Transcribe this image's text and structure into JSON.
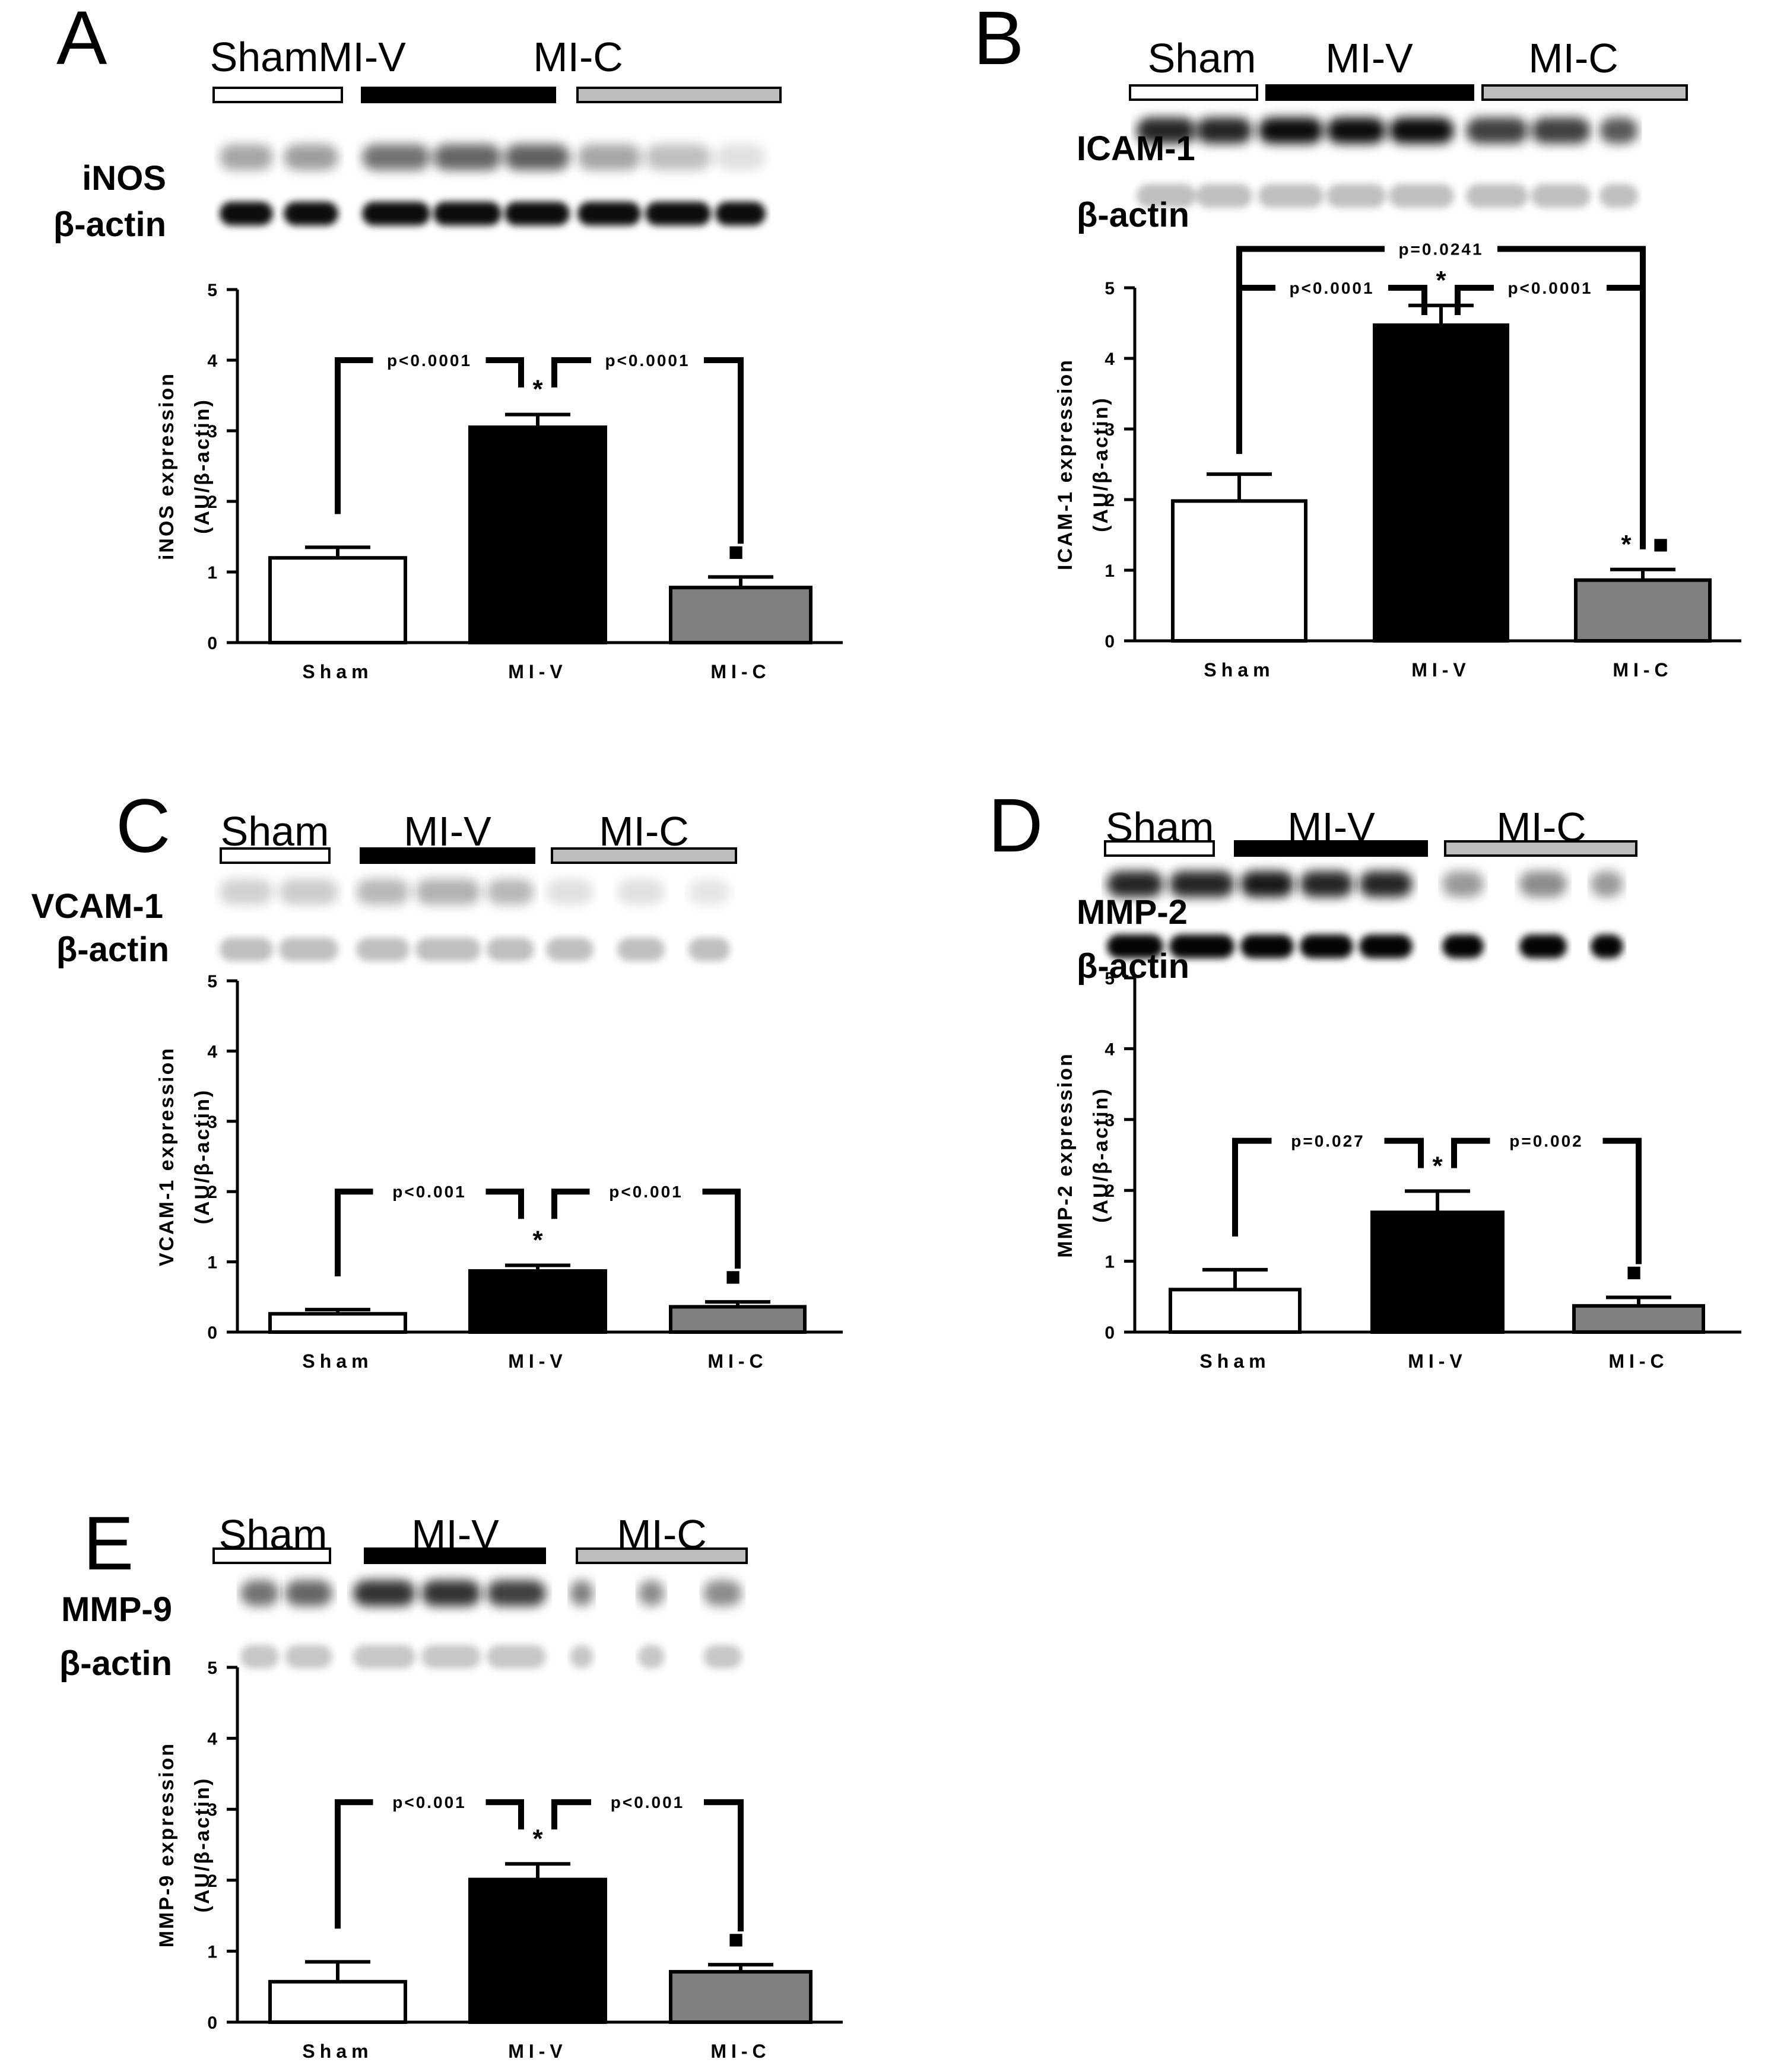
{
  "chart_data": [
    {
      "type": "bar",
      "panel": "A",
      "band_label": "iNOS",
      "loading_label": "β-actin",
      "groups": [
        "Sham",
        "MI-V",
        "MI-C"
      ],
      "group_fills": [
        "#ffffff",
        "#000000",
        "#bdbdbd"
      ],
      "categories": [
        "Sham",
        "MI-V",
        "MI-C"
      ],
      "values": [
        1.2,
        3.05,
        0.78
      ],
      "errors": [
        0.15,
        0.18,
        0.15
      ],
      "bar_colors": [
        "#ffffff",
        "#000000",
        "#808080"
      ],
      "ylabel_lines": [
        "iNOS expression",
        "(AU/β-actin)"
      ],
      "ylim": [
        0,
        5
      ],
      "yticks": [
        "0",
        "1",
        "2",
        "3",
        "4",
        "5"
      ],
      "brackets": [
        {
          "label": "p<0.0001",
          "from": 0,
          "to": 1,
          "level": 4.0
        },
        {
          "label": "p<0.0001",
          "from": 1,
          "to": 2,
          "level": 4.0
        }
      ],
      "markers": [
        {
          "bar": 1,
          "symbol": "*"
        },
        {
          "bar": 2,
          "symbol": "■"
        }
      ]
    },
    {
      "type": "bar",
      "panel": "B",
      "band_label": "ICAM-1",
      "loading_label": "β-actin",
      "groups": [
        "Sham",
        "MI-V",
        "MI-C"
      ],
      "group_fills": [
        "#ffffff",
        "#000000",
        "#bdbdbd"
      ],
      "categories": [
        "Sham",
        "MI-V",
        "MI-C"
      ],
      "values": [
        1.98,
        4.47,
        0.86
      ],
      "errors": [
        0.38,
        0.28,
        0.15
      ],
      "bar_colors": [
        "#ffffff",
        "#000000",
        "#808080"
      ],
      "ylabel_lines": [
        "ICAM-1 expression",
        "(AU/β-actin)"
      ],
      "ylim": [
        0,
        5
      ],
      "yticks": [
        "0",
        "1",
        "2",
        "3",
        "4",
        "5"
      ],
      "brackets": [
        {
          "label": "p<0.0001",
          "from": 0,
          "to": 1,
          "level": 5.0
        },
        {
          "label": "p<0.0001",
          "from": 1,
          "to": 2,
          "level": 5.0
        },
        {
          "label": "p=0.0241",
          "from": 0,
          "to": 2,
          "level": 5.55
        }
      ],
      "markers": [
        {
          "bar": 1,
          "symbol": "*"
        },
        {
          "bar": 2,
          "symbol": "*"
        },
        {
          "bar": 2,
          "symbol": "■"
        }
      ]
    },
    {
      "type": "bar",
      "panel": "C",
      "band_label": "VCAM-1",
      "loading_label": "β-actin",
      "groups": [
        "Sham",
        "MI-V",
        "MI-C"
      ],
      "group_fills": [
        "#ffffff",
        "#000000",
        "#bdbdbd"
      ],
      "categories": [
        "Sham",
        "MI-V",
        "MI-C"
      ],
      "values": [
        0.26,
        0.87,
        0.36
      ],
      "errors": [
        0.06,
        0.08,
        0.07
      ],
      "bar_colors": [
        "#ffffff",
        "#000000",
        "#808080"
      ],
      "ylabel_lines": [
        "VCAM-1 expression",
        "(AU/β-actin)"
      ],
      "ylim": [
        0,
        5
      ],
      "yticks": [
        "0",
        "1",
        "2",
        "3",
        "4",
        "5"
      ],
      "brackets": [
        {
          "label": "p<0.001",
          "from": 0,
          "to": 1,
          "level": 2.0
        },
        {
          "label": "p<0.001",
          "from": 1,
          "to": 2,
          "level": 2.0
        }
      ],
      "markers": [
        {
          "bar": 1,
          "symbol": "*"
        },
        {
          "bar": 2,
          "symbol": "■"
        }
      ]
    },
    {
      "type": "bar",
      "panel": "D",
      "band_label": "MMP-2",
      "loading_label": "β-actin",
      "groups": [
        "Sham",
        "MI-V",
        "MI-C"
      ],
      "group_fills": [
        "#ffffff",
        "#000000",
        "#bdbdbd"
      ],
      "categories": [
        "Sham",
        "MI-V",
        "MI-C"
      ],
      "values": [
        0.6,
        1.69,
        0.37
      ],
      "errors": [
        0.28,
        0.3,
        0.12
      ],
      "bar_colors": [
        "#ffffff",
        "#000000",
        "#808080"
      ],
      "ylabel_lines": [
        "MMP-2 expression",
        "(AU/β-actin)"
      ],
      "ylim": [
        0,
        5
      ],
      "yticks": [
        "0",
        "1",
        "2",
        "3",
        "4",
        "5"
      ],
      "brackets": [
        {
          "label": "p=0.027",
          "from": 0,
          "to": 1,
          "level": 2.7
        },
        {
          "label": "p=0.002",
          "from": 1,
          "to": 2,
          "level": 2.7
        }
      ],
      "markers": [
        {
          "bar": 1,
          "symbol": "*"
        },
        {
          "bar": 2,
          "symbol": "■"
        }
      ]
    },
    {
      "type": "bar",
      "panel": "E",
      "band_label": "MMP-9",
      "loading_label": "β-actin",
      "groups": [
        "Sham",
        "MI-V",
        "MI-C"
      ],
      "group_fills": [
        "#ffffff",
        "#000000",
        "#bdbdbd"
      ],
      "categories": [
        "Sham",
        "MI-V",
        "MI-C"
      ],
      "values": [
        0.57,
        2.01,
        0.71
      ],
      "errors": [
        0.28,
        0.22,
        0.1
      ],
      "bar_colors": [
        "#ffffff",
        "#000000",
        "#808080"
      ],
      "ylabel_lines": [
        "MMP-9 expression",
        "(AU/β-actin)"
      ],
      "ylim": [
        0,
        5
      ],
      "yticks": [
        "0",
        "1",
        "2",
        "3",
        "4",
        "5"
      ],
      "brackets": [
        {
          "label": "p<0.001",
          "from": 0,
          "to": 1,
          "level": 3.1
        },
        {
          "label": "p<0.001",
          "from": 1,
          "to": 2,
          "level": 3.1
        }
      ],
      "markers": [
        {
          "bar": 1,
          "symbol": "*"
        },
        {
          "bar": 2,
          "symbol": "■"
        }
      ]
    }
  ]
}
